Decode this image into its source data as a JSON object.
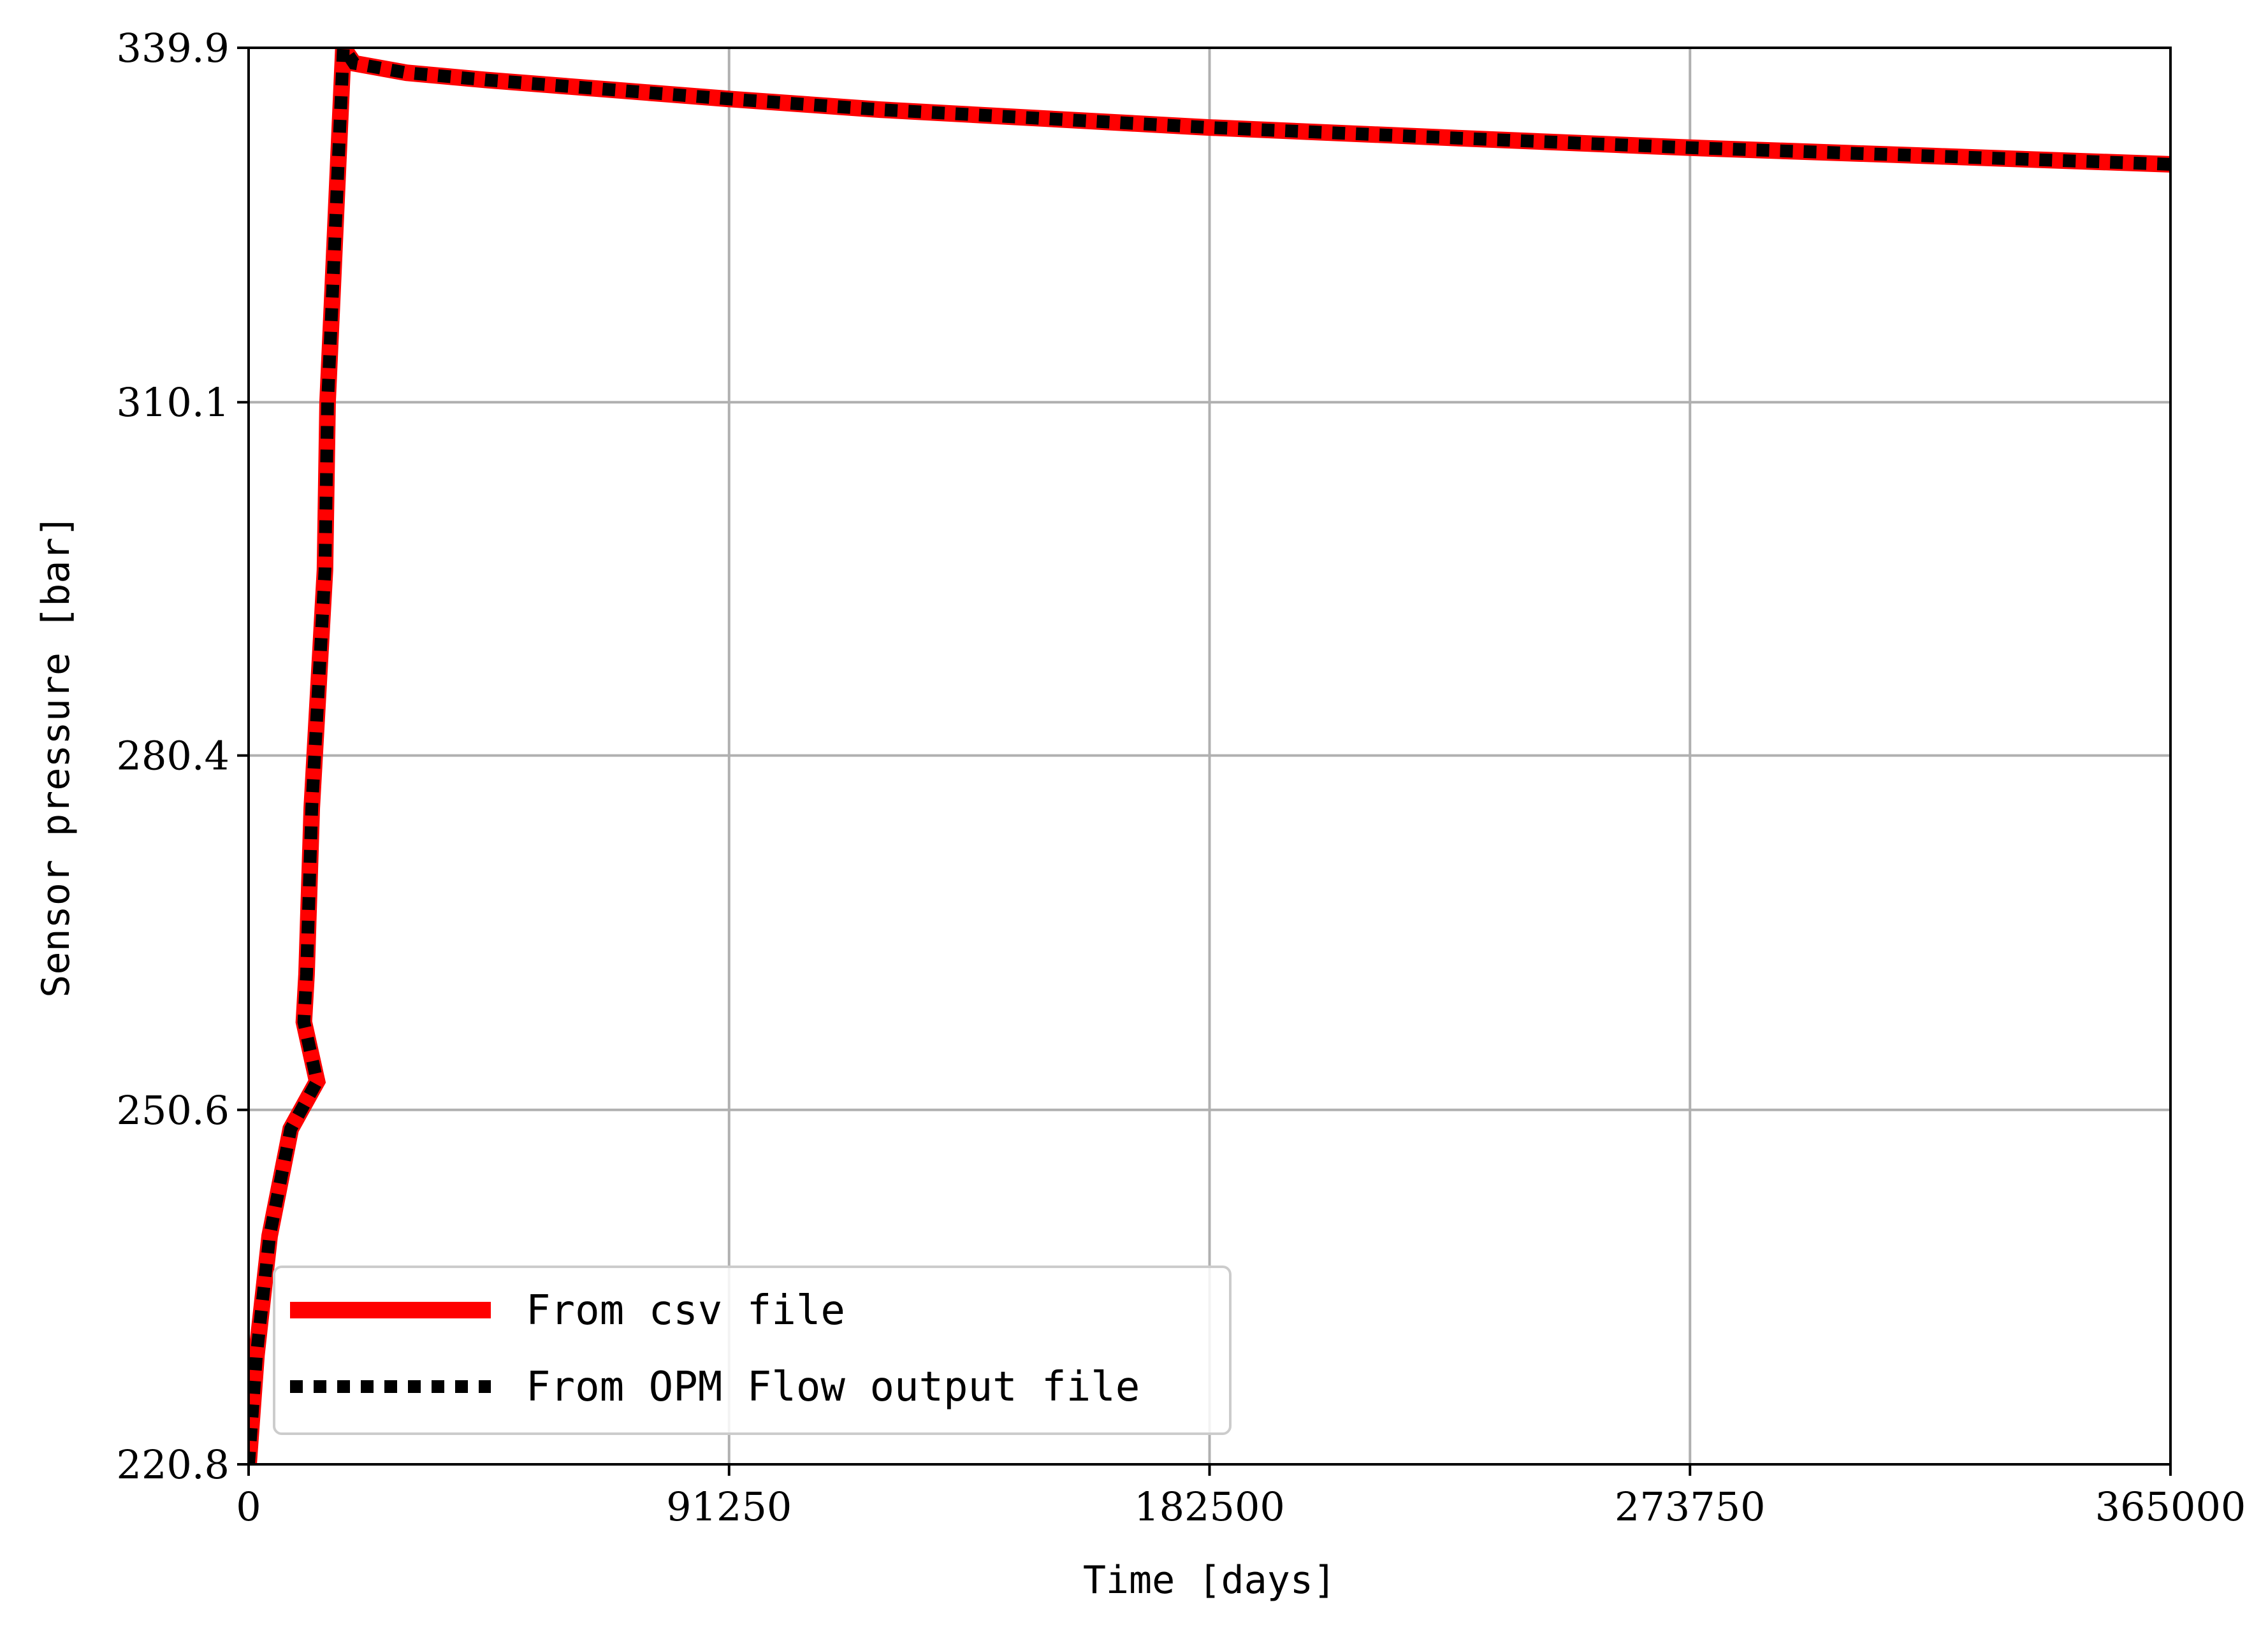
{
  "chart_data": {
    "type": "line",
    "xlabel": "Time [days]",
    "ylabel": "Sensor pressure [bar]",
    "xlim": [
      0,
      365000
    ],
    "ylim": [
      220.8,
      339.9
    ],
    "xticks": [
      0,
      91250,
      182500,
      273750,
      365000
    ],
    "xtick_labels": [
      "0",
      "91250",
      "182500",
      "273750",
      "365000"
    ],
    "yticks": [
      220.8,
      250.6,
      280.4,
      310.1,
      339.9
    ],
    "ytick_labels": [
      "220.8",
      "250.6",
      "280.4",
      "310.1",
      "339.9"
    ],
    "grid": true,
    "legend_position": "lower-left",
    "series": [
      {
        "name": "From csv file",
        "color": "#ff0000",
        "style": "solid",
        "x": [
          0,
          1500,
          4000,
          8000,
          13000,
          10500,
          11000,
          12000,
          14500,
          15000,
          16000,
          17000,
          18000,
          20000,
          30000,
          45000,
          91250,
          120000,
          182500,
          230000,
          273750,
          320000,
          365000
        ],
        "y": [
          220.8,
          230.0,
          240.0,
          249.0,
          253.0,
          258.0,
          262.0,
          276.0,
          296.0,
          310.1,
          320.0,
          330.0,
          339.9,
          338.6,
          337.8,
          337.2,
          335.6,
          334.7,
          333.2,
          332.3,
          331.5,
          330.8,
          330.1
        ]
      },
      {
        "name": "From OPM Flow output file",
        "color": "#000000",
        "style": "dotted",
        "x": [
          0,
          1500,
          4000,
          8000,
          13000,
          10500,
          11000,
          12000,
          14500,
          15000,
          16000,
          17000,
          18000,
          20000,
          30000,
          45000,
          91250,
          120000,
          182500,
          230000,
          273750,
          320000,
          365000
        ],
        "y": [
          220.8,
          230.0,
          240.0,
          249.0,
          253.0,
          258.0,
          262.0,
          276.0,
          296.0,
          310.1,
          320.0,
          330.0,
          339.9,
          338.6,
          337.8,
          337.2,
          335.6,
          334.7,
          333.2,
          332.3,
          331.5,
          330.8,
          330.1
        ]
      }
    ]
  }
}
